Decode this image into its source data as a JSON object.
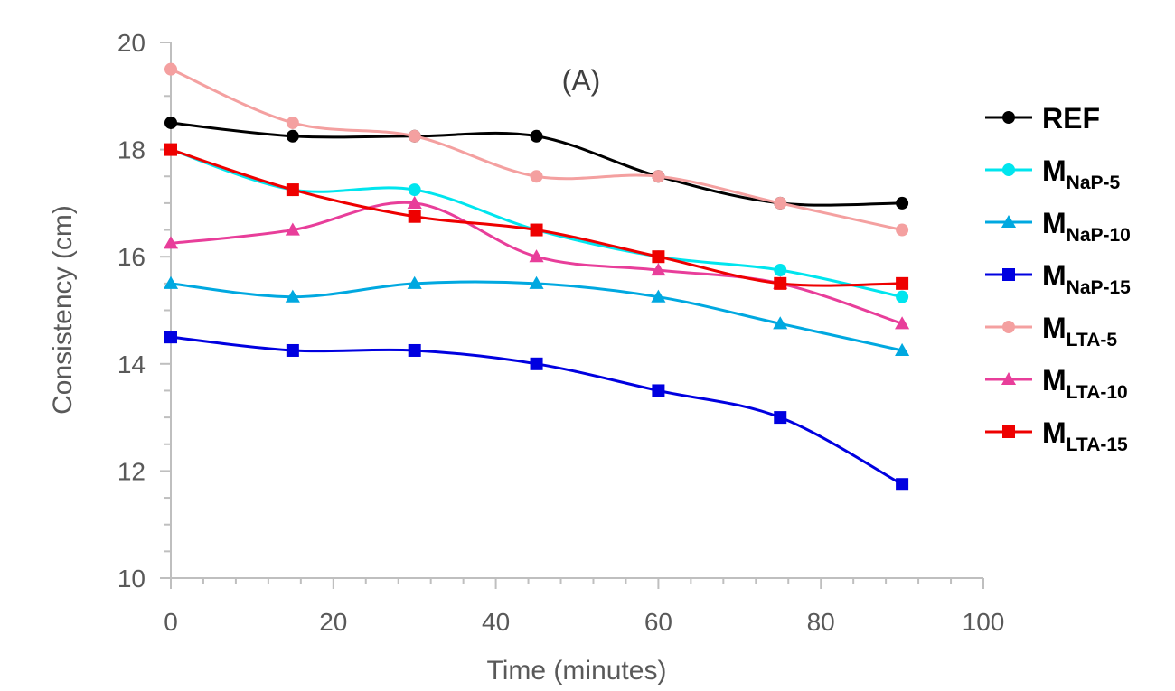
{
  "chart_data": {
    "type": "line",
    "title": "(A)",
    "xlabel": "Time (minutes)",
    "ylabel": "Consistency (cm)",
    "xlim": [
      0,
      100
    ],
    "ylim": [
      10,
      20
    ],
    "xticks": [
      "0",
      "20",
      "40",
      "60",
      "80",
      "100"
    ],
    "yticks": [
      "10",
      "12",
      "14",
      "16",
      "18",
      "20"
    ],
    "grid": false,
    "legend_position": "right",
    "x": [
      0,
      15,
      30,
      45,
      60,
      75,
      90
    ],
    "series": [
      {
        "name": "REF",
        "name_main": "REF",
        "name_sub": "",
        "color": "#000000",
        "marker": "circle",
        "values": [
          18.5,
          18.25,
          18.25,
          18.25,
          17.5,
          17.0,
          17.0
        ]
      },
      {
        "name": "MNaP-5",
        "name_main": "M",
        "name_sub": "NaP-5",
        "color": "#00E5EE",
        "marker": "circle",
        "values": [
          18.0,
          17.25,
          17.25,
          16.5,
          16.0,
          15.75,
          15.25
        ]
      },
      {
        "name": "MNaP-10",
        "name_main": "M",
        "name_sub": "NaP-10",
        "color": "#00A8E0",
        "marker": "triangle",
        "values": [
          15.5,
          15.25,
          15.5,
          15.5,
          15.25,
          14.75,
          14.25
        ]
      },
      {
        "name": "MNaP-15",
        "name_main": "M",
        "name_sub": "NaP-15",
        "color": "#0000E0",
        "marker": "square",
        "values": [
          14.5,
          14.25,
          14.25,
          14.0,
          13.5,
          13.0,
          11.75
        ]
      },
      {
        "name": "MLTA-5",
        "name_main": "M",
        "name_sub": "LTA-5",
        "color": "#F4A0A0",
        "marker": "circle",
        "values": [
          19.5,
          18.5,
          18.25,
          17.5,
          17.5,
          17.0,
          16.5
        ]
      },
      {
        "name": "MLTA-10",
        "name_main": "M",
        "name_sub": "LTA-10",
        "color": "#E83E9A",
        "marker": "triangle",
        "values": [
          16.25,
          16.5,
          17.0,
          16.0,
          15.75,
          15.5,
          14.75
        ]
      },
      {
        "name": "MLTA-15",
        "name_main": "M",
        "name_sub": "LTA-15",
        "color": "#EE0000",
        "marker": "square",
        "values": [
          18.0,
          17.25,
          16.75,
          16.5,
          16.0,
          15.5,
          15.5
        ]
      }
    ]
  }
}
